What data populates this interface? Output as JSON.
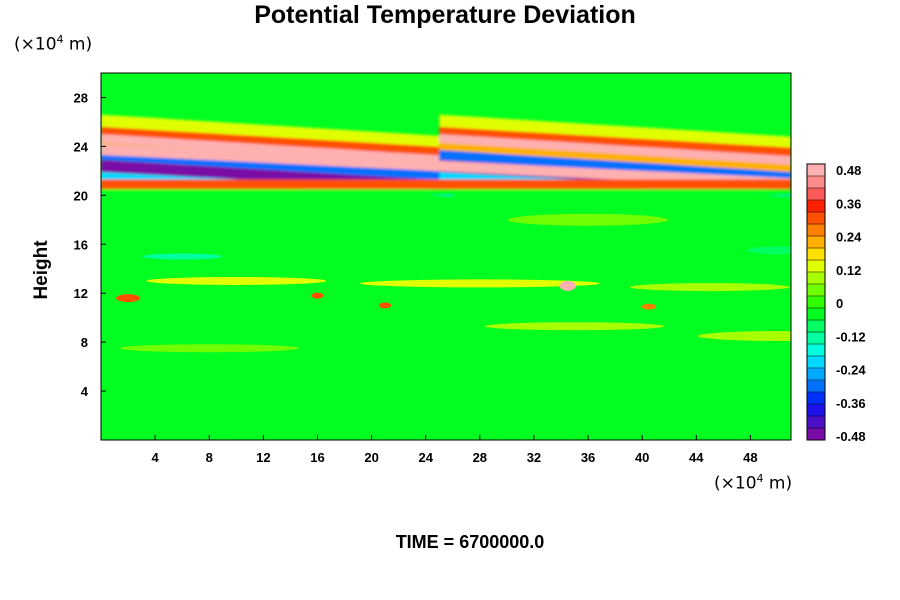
{
  "chart_data": {
    "type": "heatmap",
    "title": "Potential Temperature Deviation",
    "ylabel": "Height",
    "xlabel": "",
    "x_unit": "(×10⁴ m)",
    "y_unit": "(×10⁴ m)",
    "x_unit_text": "(×10",
    "x_unit_exp": "4",
    "x_unit_tail": " m)",
    "y_unit_text": "(×10",
    "y_unit_exp": "4",
    "y_unit_tail": " m)",
    "xlim": [
      0,
      51
    ],
    "ylim": [
      0,
      30
    ],
    "x_ticks": [
      "4",
      "8",
      "12",
      "16",
      "20",
      "24",
      "28",
      "32",
      "36",
      "40",
      "44",
      "48"
    ],
    "y_ticks": [
      "4",
      "8",
      "12",
      "16",
      "20",
      "24",
      "28"
    ],
    "colorbar": {
      "min": -0.48,
      "max": 0.48,
      "tick_labels": [
        "0.48",
        "0.36",
        "0.24",
        "0.12",
        "0",
        "-0.12",
        "-0.24",
        "-0.36",
        "-0.48"
      ],
      "colors": [
        "#7a0aa6",
        "#4b10c8",
        "#1e10e8",
        "#0030ff",
        "#0070ff",
        "#00a8ff",
        "#00d8ff",
        "#00ffe0",
        "#00ffa0",
        "#00ff60",
        "#00ff20",
        "#30ff00",
        "#70ff00",
        "#a8ff00",
        "#e0ff00",
        "#ffe000",
        "#ffb000",
        "#ff8000",
        "#ff5000",
        "#ff2000",
        "#ff5a5a",
        "#ff8c8c",
        "#ffb0b0"
      ]
    },
    "grid": false,
    "legend": "colorbar-right"
  },
  "footer": {
    "time_label": "TIME = 6700000.0"
  }
}
